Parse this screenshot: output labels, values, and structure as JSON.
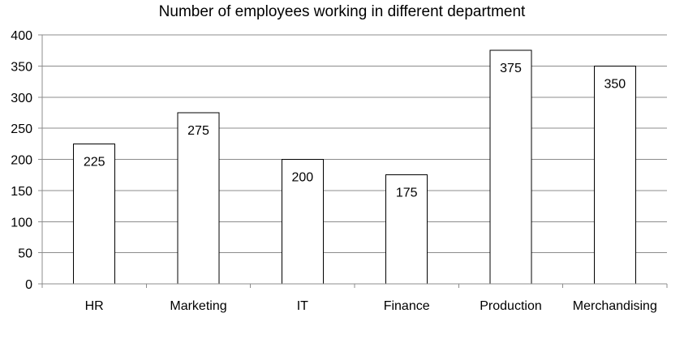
{
  "chart_data": {
    "type": "bar",
    "title": "Number of employees working in different department",
    "xlabel": "",
    "ylabel": "",
    "categories": [
      "HR",
      "Marketing",
      "IT",
      "Finance",
      "Production",
      "Merchandising"
    ],
    "values": [
      225,
      275,
      200,
      175,
      375,
      350
    ],
    "data_labels": [
      "225",
      "275",
      "200",
      "175",
      "375",
      "350"
    ],
    "ylim": [
      0,
      400
    ],
    "yticks": [
      0,
      50,
      100,
      150,
      200,
      250,
      300,
      350,
      400
    ],
    "ytick_labels": [
      "0",
      "50",
      "100",
      "150",
      "200",
      "250",
      "300",
      "350",
      "400"
    ],
    "grid": true,
    "legend": "none",
    "colors": {
      "bar_fill": "#ffffff",
      "bar_stroke": "#000000",
      "grid": "#8c8c8c",
      "axis": "#8c8c8c",
      "text": "#000000"
    }
  }
}
